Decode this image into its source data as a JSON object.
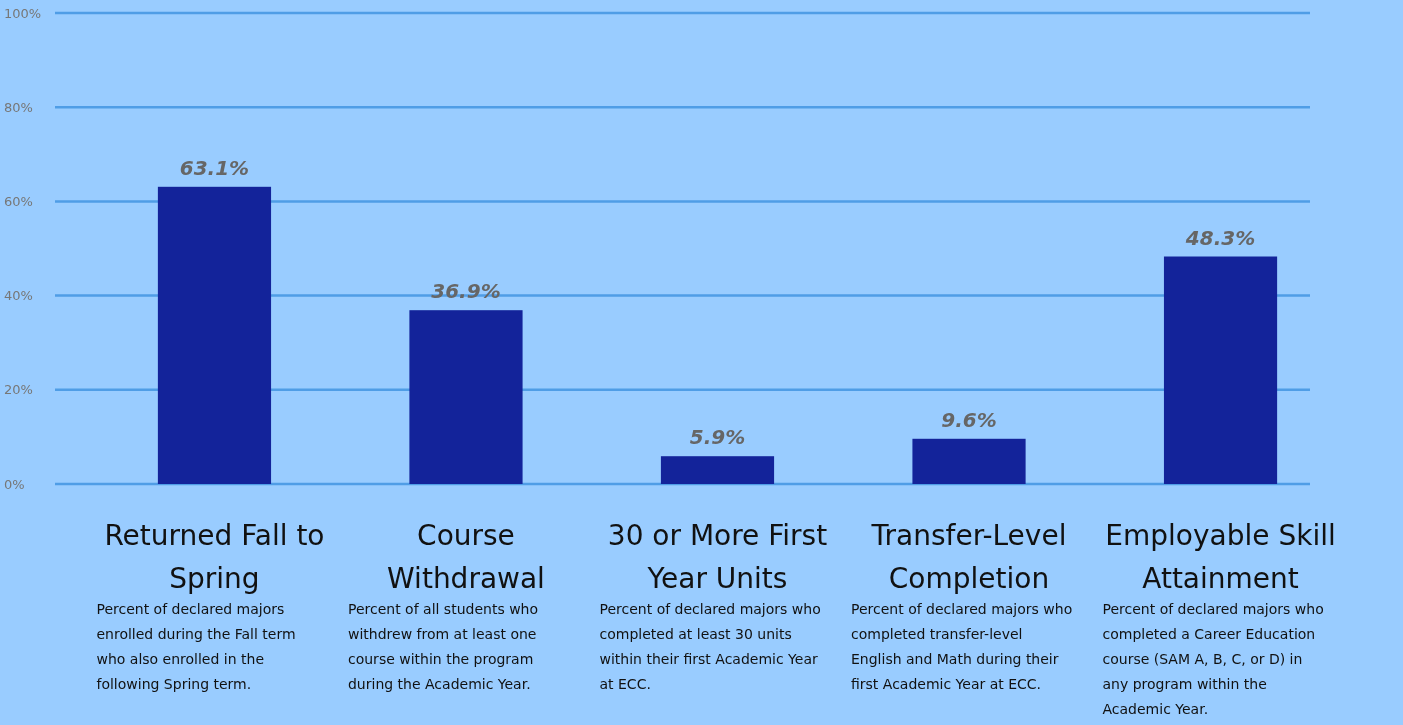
{
  "chart_data": {
    "type": "bar",
    "categories": [
      "Returned Fall to Spring",
      "Course Withdrawal",
      "30 or More First Year Units",
      "Transfer-Level Completion",
      "Employable Skill Attainment"
    ],
    "values": [
      63.1,
      36.9,
      5.9,
      9.6,
      48.3
    ],
    "color": "#13239a",
    "value_labels": [
      "63.1%",
      "36.9%",
      "5.9%",
      "9.6%",
      "48.3%"
    ],
    "ylim": [
      0,
      100
    ],
    "yticks": [
      {
        "value": 0,
        "label": "0%"
      },
      {
        "value": 20,
        "label": "20%"
      },
      {
        "value": 40,
        "label": "40%"
      },
      {
        "value": 60,
        "label": "60%"
      },
      {
        "value": 80,
        "label": "80%"
      },
      {
        "value": 100,
        "label": "100%"
      }
    ],
    "grid": "y",
    "annotations": [
      "Percent of declared majors enrolled during the Fall term who also enrolled in the following Spring term.",
      "Percent of all students who withdrew from at least one course within the program during the Academic Year.",
      "Percent of declared majors who completed at least 30 units  within their first Academic Year at ECC.",
      "Percent of declared majors who completed transfer-level English and Math during their first Academic Year at ECC.",
      "Percent of declared majors who completed a Career Education course (SAM A, B, C, or D) in any program within the Academic Year."
    ]
  }
}
